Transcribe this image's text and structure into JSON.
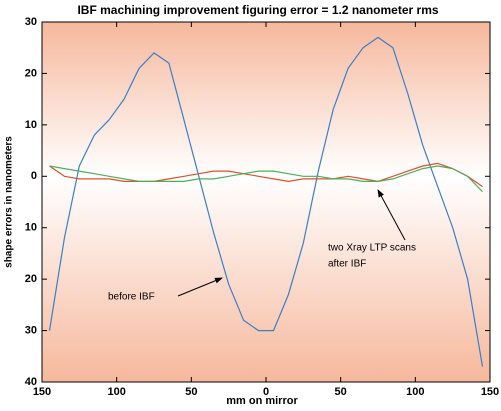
{
  "chart_data": {
    "type": "line",
    "title": "IBF machining improvement   figuring error = 1.2 nanometer rms",
    "xlabel": "mm on mirror",
    "ylabel": "shape errors in nanometers",
    "annotations": [
      "before IBF",
      "two Xray LTP scans",
      "after IBF"
    ],
    "x": [
      -145,
      -135,
      -125,
      -115,
      -105,
      -95,
      -85,
      -75,
      -65,
      -55,
      -45,
      -35,
      -25,
      -15,
      -5,
      5,
      15,
      25,
      35,
      45,
      55,
      65,
      75,
      85,
      95,
      105,
      115,
      125,
      135,
      145
    ],
    "series": [
      {
        "color": "#3a7fc8",
        "values": [
          -30,
          -12,
          2,
          8,
          11,
          15,
          21,
          24,
          22,
          11,
          0,
          -11,
          -21,
          -28,
          -30,
          -30,
          -23,
          -13,
          1,
          13,
          21,
          25,
          27,
          25,
          16,
          6,
          -2,
          -10,
          -20,
          -37
        ]
      },
      {
        "color": "#e0502a",
        "values": [
          2,
          0,
          -0.5,
          -0.5,
          -0.5,
          -1,
          -1,
          -1,
          -0.5,
          0,
          0.5,
          1,
          1,
          0.5,
          0,
          -0.5,
          -1,
          -0.5,
          -0.5,
          -0.5,
          0,
          -0.5,
          -1,
          0,
          1,
          2,
          2.5,
          1.5,
          0,
          -2
        ]
      },
      {
        "color": "#4caf5a",
        "values": [
          2,
          1.5,
          1,
          0.5,
          0,
          -0.5,
          -1,
          -1,
          -1,
          -1,
          -0.5,
          -0.5,
          0,
          0.5,
          1,
          1,
          0.5,
          0,
          0,
          -0.5,
          -0.5,
          -1,
          -1,
          -0.5,
          0.5,
          1.5,
          2,
          1.5,
          0,
          -3
        ]
      }
    ],
    "xlim": [
      -150,
      150
    ],
    "xticks": [
      {
        "value": -150,
        "label": "150"
      },
      {
        "value": -100,
        "label": "100"
      },
      {
        "value": -50,
        "label": "50"
      },
      0,
      50,
      100,
      150
    ],
    "ylim": [
      -40,
      30
    ],
    "yticks": [
      {
        "value": -40,
        "label": "40"
      },
      {
        "value": -30,
        "label": "30"
      },
      {
        "value": -20,
        "label": "20"
      },
      {
        "value": -10,
        "label": "10"
      },
      0,
      10,
      20,
      30
    ]
  }
}
